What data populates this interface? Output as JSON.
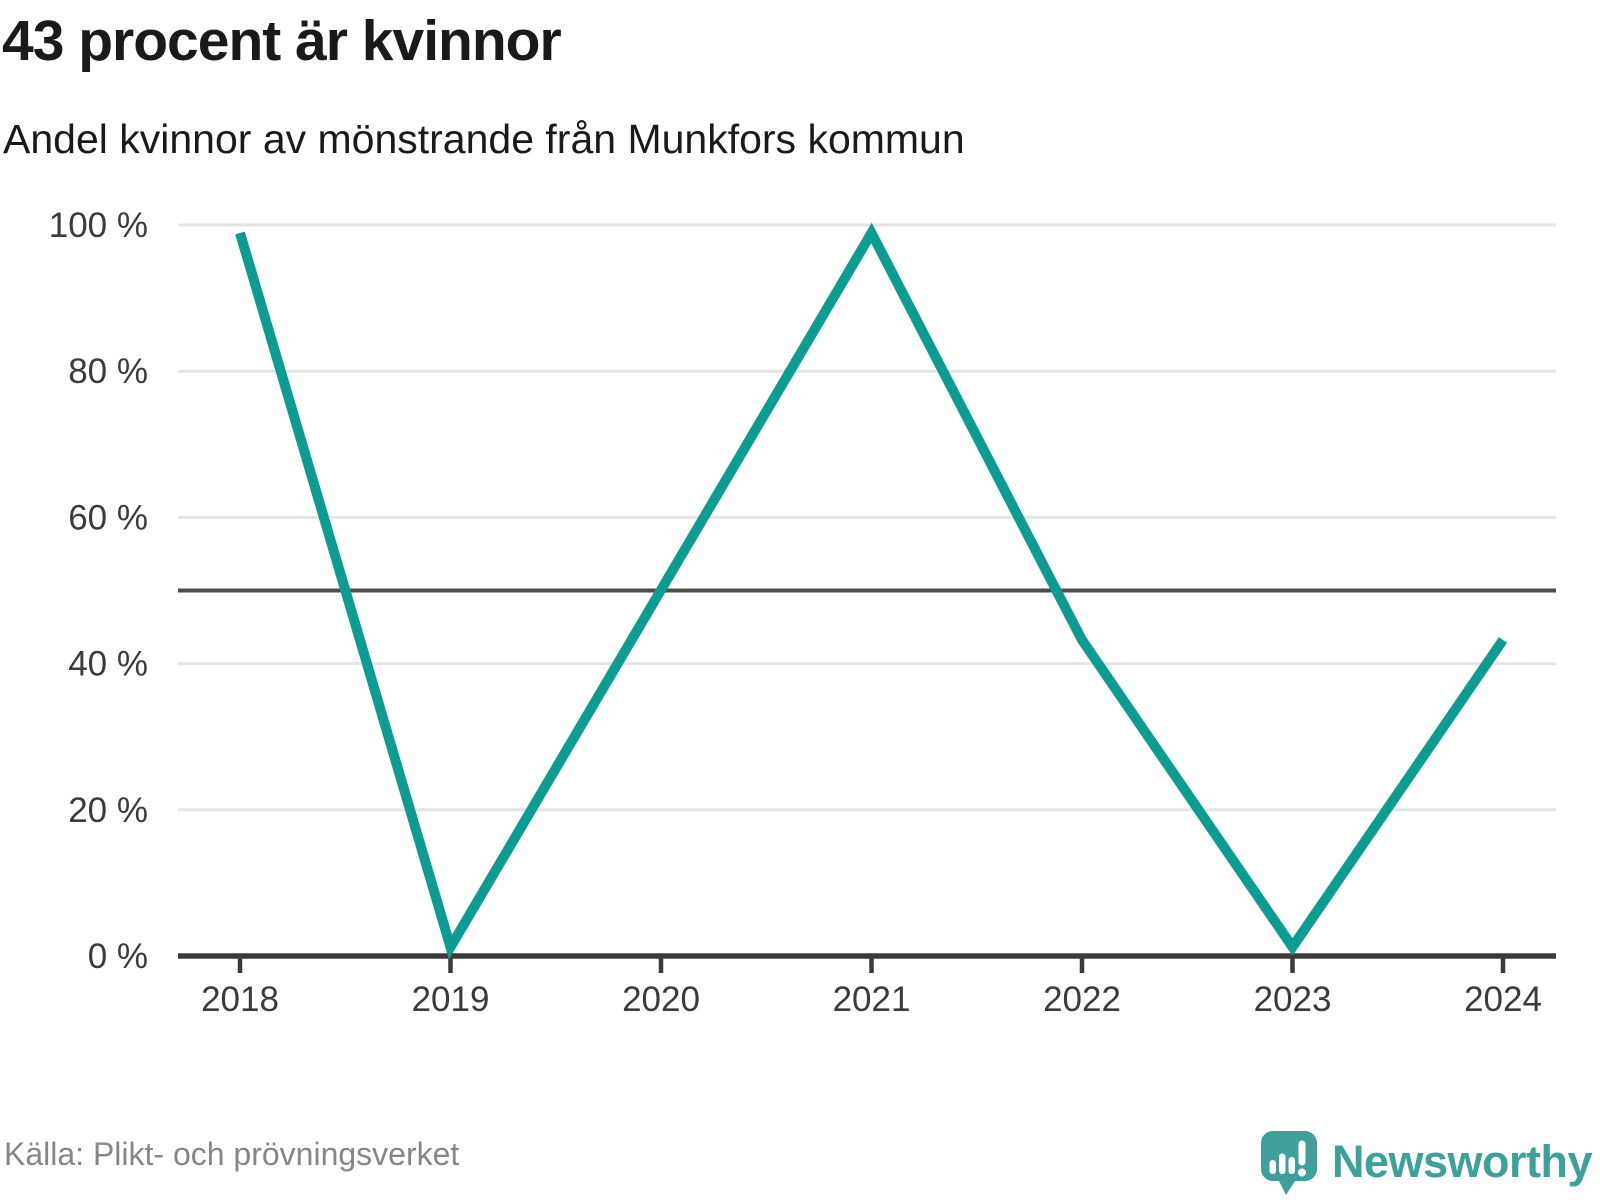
{
  "header": {
    "title": "43 procent är kvinnor",
    "subtitle": "Andel kvinnor av mönstrande från Munkfors kommun"
  },
  "footer": {
    "source": "Källa: Plikt- och prövningsverket",
    "brand": "Newsworthy"
  },
  "colors": {
    "line": "#0d9d90",
    "grid": "#e4e4e4",
    "grid_strong": "#4e4e4e",
    "axis": "#3b3b3b",
    "labels": "#3b3b3b",
    "title": "#1a1a1a",
    "source": "#868686",
    "brand": "#3da19a",
    "brand_marks": "#ffffff"
  },
  "chart_data": {
    "type": "line",
    "title": "43 procent är kvinnor",
    "subtitle": "Andel kvinnor av mönstrande från Munkfors kommun",
    "source": "Källa: Plikt- och prövningsverket",
    "x": [
      2018,
      2019,
      2020,
      2021,
      2022,
      2023,
      2024
    ],
    "xtick_labels": [
      "2018",
      "2019",
      "2020",
      "2021",
      "2022",
      "2023",
      "2024"
    ],
    "series": [
      {
        "name": "Andel kvinnor av mönstrande",
        "values": [
          100,
          0,
          50,
          100,
          43,
          0,
          43
        ]
      }
    ],
    "unit": "%",
    "ylim": [
      0,
      100
    ],
    "yticks": [
      0,
      20,
      40,
      60,
      80,
      100
    ],
    "ytick_labels": [
      "0 %",
      "20 %",
      "40 %",
      "60 %",
      "80 %",
      "100 %"
    ],
    "reference_line": 50,
    "grid": "horizontal",
    "legend": "none",
    "line_color": "#0d9d90"
  }
}
